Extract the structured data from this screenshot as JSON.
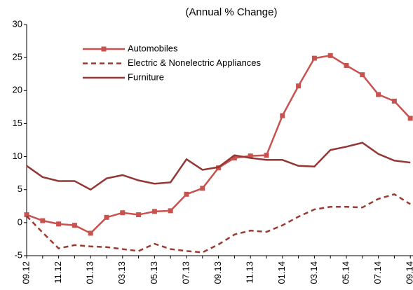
{
  "chart_data": {
    "type": "line",
    "title": "(Annual % Change)",
    "categories": [
      "09.12",
      null,
      "11.12",
      null,
      "01.13",
      null,
      "03.13",
      null,
      "05.13",
      null,
      "07.13",
      null,
      "09.13",
      null,
      "11.13",
      null,
      "01.14",
      null,
      "03.14",
      null,
      "05.14",
      null,
      "07.14",
      null,
      "09.14"
    ],
    "series": [
      {
        "name": "Automobiles",
        "color": "#c9524f",
        "marker": "square",
        "dash": false,
        "values": [
          1.2,
          0.3,
          -0.2,
          -0.4,
          -1.6,
          0.8,
          1.5,
          1.2,
          1.7,
          1.8,
          4.3,
          5.2,
          8.3,
          9.8,
          10.1,
          10.2,
          16.2,
          20.7,
          24.9,
          25.3,
          23.8,
          22.4,
          19.4,
          18.4,
          15.8
        ]
      },
      {
        "name": "Electric & Nonelectric Appliances",
        "color": "#9c3b32",
        "marker": null,
        "dash": true,
        "values": [
          1.0,
          -1.5,
          -3.9,
          -3.4,
          -3.6,
          -3.7,
          -4.0,
          -4.3,
          -3.2,
          -4.0,
          -4.3,
          -4.5,
          -3.3,
          -1.8,
          -1.2,
          -1.4,
          -0.4,
          0.9,
          2.0,
          2.4,
          2.4,
          2.3,
          3.6,
          4.3,
          2.8
        ]
      },
      {
        "name": "Furniture",
        "color": "#943634",
        "marker": null,
        "dash": false,
        "values": [
          8.6,
          6.9,
          6.3,
          6.3,
          5.0,
          6.7,
          7.2,
          6.4,
          5.9,
          6.1,
          9.6,
          8.0,
          8.4,
          10.2,
          9.8,
          9.5,
          9.5,
          8.6,
          8.5,
          11.0,
          11.5,
          12.1,
          10.4,
          9.4,
          9.1
        ]
      }
    ],
    "ylim": [
      -5,
      30
    ],
    "yticks": [
      -5,
      0,
      5,
      10,
      15,
      20,
      25,
      30
    ],
    "legend": "upper-left",
    "grid": false
  }
}
